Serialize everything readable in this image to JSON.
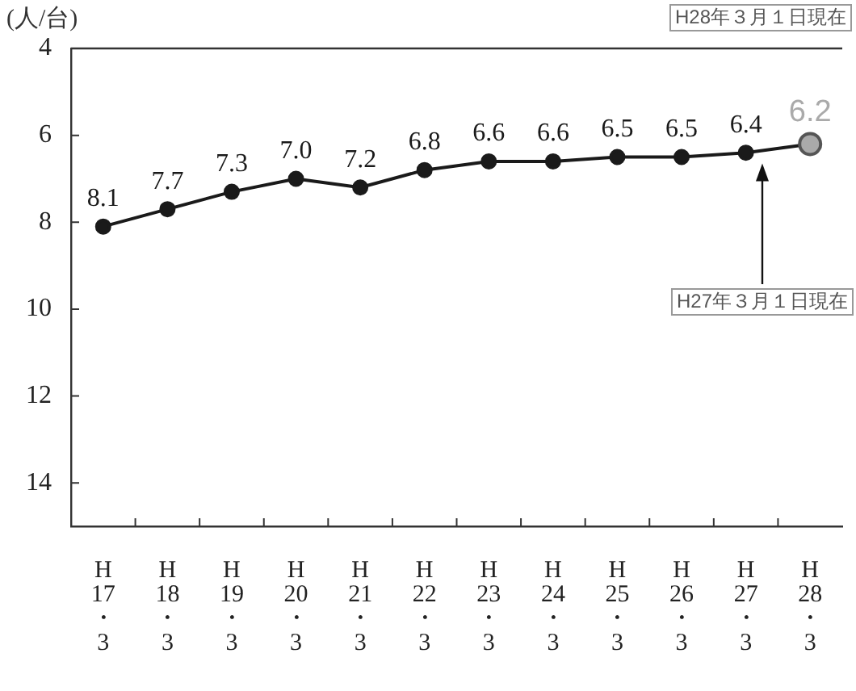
{
  "chart_data": {
    "type": "line",
    "ylabel": "(人/台)",
    "categories": [
      "H\n17\n・\n3",
      "H\n18\n・\n3",
      "H\n19\n・\n3",
      "H\n20\n・\n3",
      "H\n21\n・\n3",
      "H\n22\n・\n3",
      "H\n23\n・\n3",
      "H\n24\n・\n3",
      "H\n25\n・\n3",
      "H\n26\n・\n3",
      "H\n27\n・\n3",
      "H\n28\n・\n3"
    ],
    "series": [
      {
        "color": "#1a1a1a",
        "colors": [
          "#1a1a1a",
          "#1a1a1a",
          "#1a1a1a",
          "#1a1a1a",
          "#1a1a1a",
          "#1a1a1a",
          "#1a1a1a",
          "#1a1a1a",
          "#1a1a1a",
          "#1a1a1a",
          "#1a1a1a",
          "#aaaaaa"
        ],
        "values": [
          8.1,
          7.7,
          7.3,
          7.0,
          7.2,
          6.8,
          6.6,
          6.6,
          6.5,
          6.5,
          6.4,
          6.2
        ],
        "value_labels": [
          "8.1",
          "7.7",
          "7.3",
          "7.0",
          "7.2",
          "6.8",
          "6.6",
          "6.6",
          "6.5",
          "6.5",
          "6.4",
          "6.2"
        ]
      }
    ],
    "ylim": [
      15,
      4
    ],
    "yticks": [
      4,
      6,
      8,
      10,
      12,
      14
    ],
    "grid": false,
    "legend": false,
    "marker": "circle",
    "line_style": "solid",
    "annotations": [
      "H28年３月１日現在",
      "H27年３月１日現在"
    ]
  }
}
